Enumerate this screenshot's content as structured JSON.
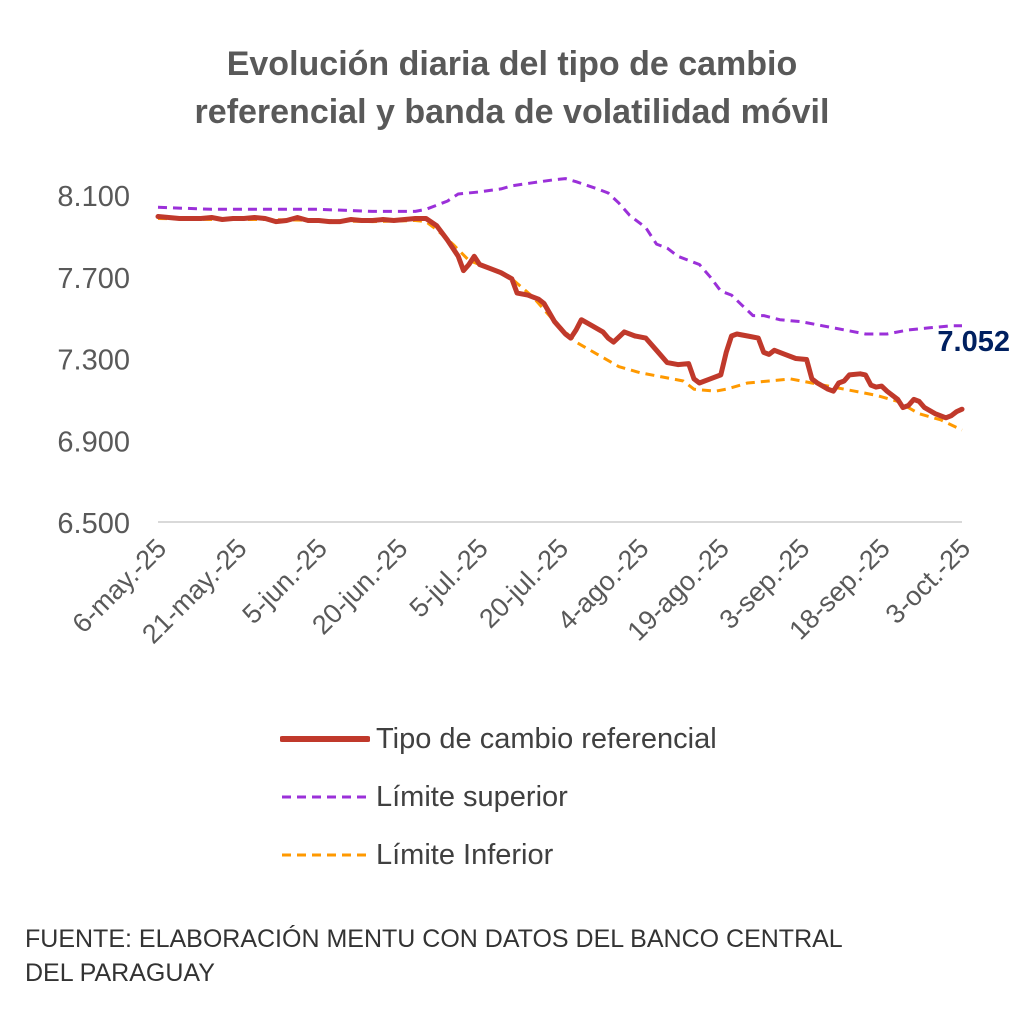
{
  "chart_data": {
    "type": "line",
    "title_lines": [
      "Evolución diaria del tipo de cambio",
      "referencial y banda de volatilidad móvil"
    ],
    "ylim": [
      6500,
      8200
    ],
    "yticks": [
      "8.100",
      "7.700",
      "7.300",
      "6.900",
      "6.500"
    ],
    "ytick_values": [
      8100,
      7700,
      7300,
      6900,
      6500
    ],
    "xlim": [
      0,
      150
    ],
    "xticks": [
      "6-may.-25",
      "21-may.-25",
      "5-jun.-25",
      "20-jun.-25",
      "5-jul.-25",
      "20-jul.-25",
      "4-ago.-25",
      "19-ago.-25",
      "3-sep.-25",
      "18-sep.-25",
      "3-oct.-25"
    ],
    "xtick_positions": [
      0,
      15,
      30,
      45,
      60,
      75,
      90,
      105,
      120,
      135,
      150
    ],
    "annotation": {
      "text": "7.052",
      "x": 150,
      "y": 7052,
      "color": "#002060"
    },
    "series": [
      {
        "name": "Tipo de cambio referencial",
        "color": "#c0392b",
        "style": "solid",
        "points": [
          [
            0,
            7995
          ],
          [
            2,
            7990
          ],
          [
            4,
            7985
          ],
          [
            6,
            7985
          ],
          [
            8,
            7985
          ],
          [
            10,
            7990
          ],
          [
            12,
            7980
          ],
          [
            14,
            7985
          ],
          [
            16,
            7985
          ],
          [
            18,
            7990
          ],
          [
            20,
            7985
          ],
          [
            22,
            7970
          ],
          [
            24,
            7975
          ],
          [
            26,
            7990
          ],
          [
            28,
            7975
          ],
          [
            30,
            7975
          ],
          [
            32,
            7970
          ],
          [
            34,
            7970
          ],
          [
            36,
            7980
          ],
          [
            38,
            7975
          ],
          [
            40,
            7975
          ],
          [
            42,
            7980
          ],
          [
            44,
            7975
          ],
          [
            46,
            7980
          ],
          [
            48,
            7985
          ],
          [
            50,
            7985
          ],
          [
            52,
            7950
          ],
          [
            54,
            7880
          ],
          [
            56,
            7800
          ],
          [
            57,
            7730
          ],
          [
            58,
            7760
          ],
          [
            59,
            7800
          ],
          [
            60,
            7760
          ],
          [
            62,
            7740
          ],
          [
            64,
            7720
          ],
          [
            66,
            7690
          ],
          [
            67,
            7620
          ],
          [
            69,
            7610
          ],
          [
            71,
            7590
          ],
          [
            72,
            7570
          ],
          [
            74,
            7480
          ],
          [
            76,
            7420
          ],
          [
            77,
            7400
          ],
          [
            78,
            7440
          ],
          [
            79,
            7490
          ],
          [
            81,
            7460
          ],
          [
            83,
            7430
          ],
          [
            84,
            7400
          ],
          [
            85,
            7380
          ],
          [
            87,
            7430
          ],
          [
            89,
            7410
          ],
          [
            91,
            7400
          ],
          [
            93,
            7340
          ],
          [
            95,
            7280
          ],
          [
            97,
            7270
          ],
          [
            99,
            7275
          ],
          [
            100,
            7200
          ],
          [
            101,
            7180
          ],
          [
            103,
            7200
          ],
          [
            105,
            7220
          ],
          [
            106,
            7330
          ],
          [
            107,
            7410
          ],
          [
            108,
            7420
          ],
          [
            110,
            7410
          ],
          [
            112,
            7400
          ],
          [
            113,
            7330
          ],
          [
            114,
            7320
          ],
          [
            115,
            7340
          ],
          [
            117,
            7320
          ],
          [
            119,
            7300
          ],
          [
            121,
            7295
          ],
          [
            122,
            7200
          ],
          [
            123,
            7180
          ],
          [
            125,
            7150
          ],
          [
            126,
            7140
          ],
          [
            127,
            7180
          ],
          [
            128,
            7190
          ],
          [
            129,
            7220
          ],
          [
            131,
            7225
          ],
          [
            132,
            7220
          ],
          [
            133,
            7170
          ],
          [
            134,
            7160
          ],
          [
            135,
            7165
          ],
          [
            136,
            7140
          ],
          [
            138,
            7100
          ],
          [
            139,
            7060
          ],
          [
            140,
            7070
          ],
          [
            141,
            7100
          ],
          [
            142,
            7090
          ],
          [
            143,
            7060
          ],
          [
            145,
            7030
          ],
          [
            147,
            7010
          ],
          [
            148,
            7020
          ],
          [
            149,
            7040
          ],
          [
            150,
            7052
          ]
        ]
      },
      {
        "name": "Límite superior",
        "color": "#9b30d9",
        "style": "dashed",
        "points": [
          [
            0,
            8040
          ],
          [
            10,
            8030
          ],
          [
            20,
            8030
          ],
          [
            30,
            8030
          ],
          [
            40,
            8020
          ],
          [
            48,
            8020
          ],
          [
            50,
            8030
          ],
          [
            54,
            8070
          ],
          [
            56,
            8105
          ],
          [
            60,
            8115
          ],
          [
            64,
            8130
          ],
          [
            66,
            8145
          ],
          [
            70,
            8160
          ],
          [
            74,
            8175
          ],
          [
            76,
            8180
          ],
          [
            78,
            8165
          ],
          [
            82,
            8130
          ],
          [
            84,
            8110
          ],
          [
            86,
            8060
          ],
          [
            88,
            8000
          ],
          [
            91,
            7940
          ],
          [
            93,
            7860
          ],
          [
            95,
            7840
          ],
          [
            97,
            7800
          ],
          [
            99,
            7780
          ],
          [
            101,
            7760
          ],
          [
            103,
            7700
          ],
          [
            105,
            7630
          ],
          [
            107,
            7610
          ],
          [
            109,
            7560
          ],
          [
            111,
            7510
          ],
          [
            113,
            7510
          ],
          [
            116,
            7490
          ],
          [
            120,
            7480
          ],
          [
            124,
            7460
          ],
          [
            128,
            7440
          ],
          [
            132,
            7420
          ],
          [
            136,
            7420
          ],
          [
            140,
            7440
          ],
          [
            144,
            7450
          ],
          [
            148,
            7460
          ],
          [
            150,
            7460
          ]
        ]
      },
      {
        "name": "Límite Inferior",
        "color": "#ff9900",
        "style": "dashed",
        "points": [
          [
            0,
            7985
          ],
          [
            10,
            7980
          ],
          [
            20,
            7980
          ],
          [
            30,
            7975
          ],
          [
            40,
            7970
          ],
          [
            48,
            7975
          ],
          [
            50,
            7970
          ],
          [
            52,
            7930
          ],
          [
            55,
            7860
          ],
          [
            58,
            7780
          ],
          [
            62,
            7740
          ],
          [
            66,
            7690
          ],
          [
            70,
            7600
          ],
          [
            74,
            7480
          ],
          [
            78,
            7380
          ],
          [
            82,
            7320
          ],
          [
            86,
            7260
          ],
          [
            90,
            7230
          ],
          [
            94,
            7210
          ],
          [
            98,
            7190
          ],
          [
            100,
            7150
          ],
          [
            104,
            7140
          ],
          [
            106,
            7150
          ],
          [
            110,
            7180
          ],
          [
            114,
            7190
          ],
          [
            118,
            7200
          ],
          [
            122,
            7180
          ],
          [
            126,
            7160
          ],
          [
            130,
            7140
          ],
          [
            134,
            7120
          ],
          [
            138,
            7090
          ],
          [
            142,
            7030
          ],
          [
            146,
            7000
          ],
          [
            150,
            6950
          ]
        ]
      }
    ],
    "source_lines": [
      "FUENTE: ELABORACIÓN MENTU CON DATOS DEL BANCO CENTRAL",
      "DEL PARAGUAY"
    ]
  }
}
